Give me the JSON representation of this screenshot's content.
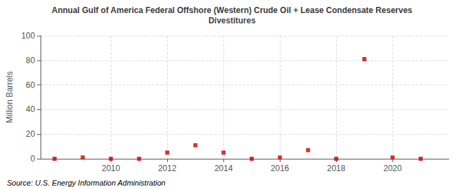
{
  "chart_data": {
    "type": "scatter",
    "title": "Annual Gulf of America Federal Offshore (Western) Crude Oil + Lease Condensate Reserves",
    "subtitle": "Divestitures",
    "ylabel": "Million Barrels",
    "annotation": "Source: U.S. Energy Information Administration",
    "x": [
      2008,
      2009,
      2010,
      2011,
      2012,
      2013,
      2014,
      2015,
      2016,
      2017,
      2018,
      2019,
      2020,
      2021
    ],
    "values": [
      0.0,
      1.0,
      0.0,
      0.0,
      5.0,
      11.0,
      5.0,
      0.0,
      1.0,
      7.0,
      0.0,
      81.0,
      1.0,
      0.0
    ],
    "color": "#cc0000",
    "marker": "square",
    "xlim": [
      2007.5,
      2022.0
    ],
    "xticks": [
      2010,
      2012,
      2014,
      2016,
      2018,
      2020
    ],
    "ylim": [
      0,
      100
    ],
    "yticks": [
      0,
      20,
      40,
      60,
      80,
      100
    ],
    "grid": true
  }
}
